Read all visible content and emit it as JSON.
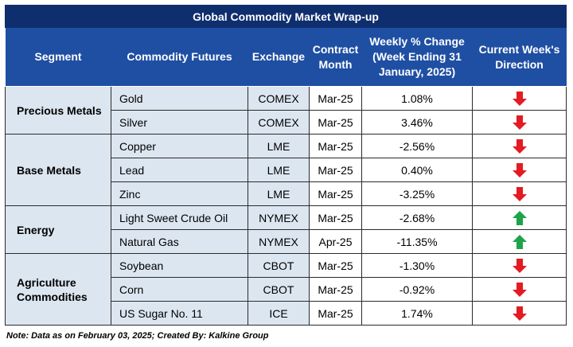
{
  "title": "Global Commodity Market Wrap-up",
  "headers": {
    "segment": "Segment",
    "commodity": "Commodity Futures",
    "exchange": "Exchange",
    "contract": "Contract Month",
    "weekly_change": "Weekly % Change (Week Ending 31 January, 2025)",
    "direction": "Current Week's Direction"
  },
  "colors": {
    "down": "#e31b23",
    "up": "#1fa34a",
    "header_dark": "#0f2e6e",
    "header": "#1f4fa3",
    "shade": "#dce6f1"
  },
  "segments": [
    {
      "name": "Precious Metals",
      "rows": [
        {
          "commodity": "Gold",
          "exchange": "COMEX",
          "contract": "Mar-25",
          "change": "1.08%",
          "direction": "down"
        },
        {
          "commodity": "Silver",
          "exchange": "COMEX",
          "contract": "Mar-25",
          "change": "3.46%",
          "direction": "down"
        }
      ]
    },
    {
      "name": "Base Metals",
      "rows": [
        {
          "commodity": "Copper",
          "exchange": "LME",
          "contract": "Mar-25",
          "change": "-2.56%",
          "direction": "down"
        },
        {
          "commodity": "Lead",
          "exchange": "LME",
          "contract": "Mar-25",
          "change": "0.40%",
          "direction": "down"
        },
        {
          "commodity": "Zinc",
          "exchange": "LME",
          "contract": "Mar-25",
          "change": "-3.25%",
          "direction": "down"
        }
      ]
    },
    {
      "name": "Energy",
      "rows": [
        {
          "commodity": "Light Sweet Crude Oil",
          "exchange": "NYMEX",
          "contract": "Mar-25",
          "change": "-2.68%",
          "direction": "up"
        },
        {
          "commodity": "Natural Gas",
          "exchange": "NYMEX",
          "contract": "Apr-25",
          "change": "-11.35%",
          "direction": "up"
        }
      ]
    },
    {
      "name": "Agriculture Commodities",
      "rows": [
        {
          "commodity": "Soybean",
          "exchange": "CBOT",
          "contract": "Mar-25",
          "change": "-1.30%",
          "direction": "down"
        },
        {
          "commodity": "Corn",
          "exchange": "CBOT",
          "contract": "Mar-25",
          "change": "-0.92%",
          "direction": "down"
        },
        {
          "commodity": "US Sugar No. 11",
          "exchange": "ICE",
          "contract": "Mar-25",
          "change": "1.74%",
          "direction": "down"
        }
      ]
    }
  ],
  "note": "Note: Data as on February 03, 2025; Created By: Kalkine Group"
}
